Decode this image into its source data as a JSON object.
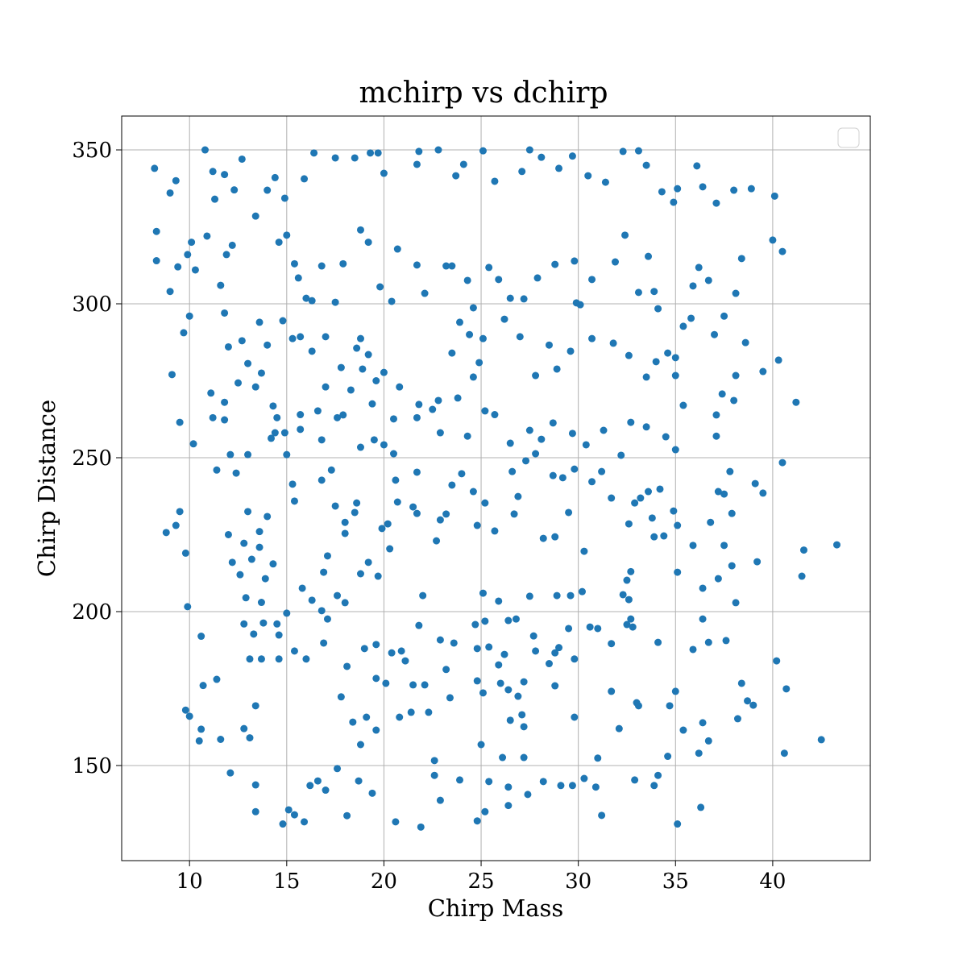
{
  "chart_data": {
    "type": "scatter",
    "title": "mchirp vs dchirp",
    "x_label": "Chirp Mass",
    "y_label": "Chirp Distance",
    "color": "#1f77b4",
    "grid": true,
    "xlim": [
      6.51,
      45.02
    ],
    "ylim": [
      119.1,
      361.0
    ],
    "xticks": [
      10,
      15,
      20,
      25,
      30,
      35,
      40
    ],
    "yticks": [
      150,
      200,
      250,
      300,
      350
    ],
    "x": [
      8.2,
      8.3,
      8.3,
      9.0,
      9.3,
      9.0,
      9.1,
      9.4,
      9.7,
      9.5,
      10.0,
      9.9,
      10.1,
      10.8,
      11.2,
      11.3,
      10.3,
      10.9,
      11.8,
      12.7,
      12.3,
      12.2,
      11.9,
      11.6,
      11.8,
      12.0,
      11.1,
      11.2,
      10.2,
      11.4,
      12.1,
      12.4,
      13.0,
      12.0,
      12.2,
      8.8,
      9.3,
      9.5,
      9.8,
      9.9,
      10.6,
      10.7,
      11.4,
      9.8,
      10.0,
      10.6,
      10.5,
      11.6,
      12.1,
      12.8,
      13.1,
      13.4,
      13.4,
      14.8,
      15.1,
      15.4,
      15.9,
      16.2,
      16.6,
      17.0,
      17.6,
      18.1,
      18.7,
      19.4,
      20.6,
      21.9,
      22.9,
      23.9,
      24.8,
      25.2,
      25.4,
      26.1,
      26.4,
      26.4,
      27.2,
      27.4,
      28.2,
      29.1,
      29.7,
      30.3,
      30.9,
      31.2,
      31.0,
      32.1,
      32.9,
      33.9,
      34.1,
      34.6,
      35.1,
      35.4,
      36.2,
      36.3,
      36.7,
      40.6,
      42.5,
      43.3,
      41.6,
      41.5,
      40.7,
      40.2,
      40.5,
      41.2,
      40.3,
      40.5,
      40.1,
      40.0,
      38.9,
      38.0,
      38.4,
      38.1,
      39.5,
      38.6,
      38.1,
      37.5,
      37.0,
      36.7,
      35.9,
      36.2,
      36.4,
      36.1,
      37.1,
      35.1,
      34.9,
      34.3,
      33.5,
      33.1,
      32.3,
      31.4,
      30.5,
      29.7,
      29.0,
      28.1,
      27.5,
      27.1,
      25.7,
      25.1,
      24.1,
      23.7,
      22.8,
      21.8,
      21.7,
      20.0,
      19.7,
      19.3,
      18.5,
      17.5,
      16.4,
      15.9,
      14.4,
      14.9,
      14.0,
      13.4,
      15.0,
      14.6,
      15.4,
      16.0,
      15.6,
      16.3,
      16.8,
      17.5,
      17.9,
      18.8,
      19.2,
      19.8,
      20.4,
      20.7,
      21.7,
      22.1,
      23.2,
      23.5,
      24.3,
      24.6,
      25.4,
      25.9,
      26.5,
      27.2,
      27.9,
      28.8,
      29.8,
      29.9,
      30.1,
      30.7,
      31.9,
      32.4,
      33.6,
      33.1,
      33.9,
      34.1,
      35.4,
      35.8,
      35.0,
      35.0,
      35.4,
      34.6,
      34.0,
      33.5,
      32.6,
      31.8,
      30.7,
      29.6,
      28.9,
      28.5,
      27.8,
      27.0,
      26.2,
      25.1,
      24.9,
      24.6,
      24.4,
      23.9,
      23.5,
      23.8,
      22.8,
      21.8,
      20.8,
      20.0,
      19.6,
      19.2,
      18.8,
      17.8,
      17.0,
      16.3,
      15.7,
      15.3,
      14.8,
      14.0,
      13.6,
      13.0,
      12.5,
      13.4,
      14.5,
      15.7,
      17.0,
      17.9,
      18.3,
      19.4,
      20.5,
      21.7,
      22.5,
      22.9,
      24.3,
      25.2,
      25.7,
      26.5,
      27.5,
      28.1,
      28.7,
      29.7,
      30.4,
      31.3,
      32.2,
      32.7,
      33.5,
      34.5,
      35.0,
      37.1,
      37.1,
      37.4,
      38.0,
      37.8,
      39.1,
      39.5,
      37.5,
      37.2,
      37.9,
      37.5,
      36.8,
      35.9,
      35.1,
      34.9,
      34.4,
      33.9,
      33.8,
      32.9,
      33.2,
      33.6,
      34.2,
      32.6,
      32.5,
      32.6,
      32.3,
      32.7,
      35.1,
      36.4,
      36.4,
      35.9,
      36.7,
      37.6,
      38.1,
      39.2,
      37.9,
      37.2,
      38.4,
      39.0,
      38.7,
      38.2,
      36.4,
      35.0,
      34.7,
      34.1,
      32.5,
      32.8,
      32.7,
      33.0,
      33.1,
      31.0,
      30.6,
      30.2,
      30.3,
      29.6,
      28.9,
      28.2,
      28.8,
      29.5,
      29.2,
      29.8,
      30.7,
      31.7,
      31.2,
      28.7,
      27.8,
      27.3,
      26.6,
      26.9,
      26.7,
      25.7,
      24.8,
      25.2,
      24.6,
      24.0,
      23.5,
      23.2,
      22.9,
      22.7,
      21.7,
      21.5,
      21.7,
      20.6,
      20.7,
      20.2,
      20.3,
      19.9,
      19.7,
      19.2,
      18.8,
      18.5,
      18.6,
      18.0,
      18.0,
      17.5,
      17.1,
      16.9,
      17.3,
      16.8,
      15.4,
      15.3,
      14.0,
      13.6,
      13.6,
      13.0,
      13.2,
      13.9,
      14.3,
      12.8,
      12.6,
      12.9,
      13.7,
      13.8,
      12.8,
      13.3,
      13.4,
      13.1,
      13.7,
      14.5,
      14.6,
      14.6,
      15.0,
      15.4,
      16.0,
      15.8,
      16.3,
      16.8,
      16.9,
      17.1,
      17.6,
      18.0,
      18.1,
      17.8,
      18.4,
      18.8,
      19.1,
      19.0,
      19.6,
      20.1,
      19.6,
      19.6,
      20.4,
      20.9,
      21.1,
      20.8,
      21.4,
      21.5,
      21.8,
      22.0,
      22.1,
      22.3,
      22.6,
      22.6,
      23.2,
      23.6,
      23.4,
      22.9,
      24.7,
      25.1,
      25.2,
      24.8,
      24.8,
      25.1,
      25.0,
      25.4,
      25.9,
      26.4,
      26.8,
      27.5,
      27.7,
      27.8,
      27.2,
      26.9,
      27.1,
      27.2,
      26.5,
      26.4,
      26.0,
      26.2,
      25.9,
      28.8,
      29.0,
      28.8,
      29.5,
      29.8,
      29.8,
      28.5,
      31.7,
      31.7,
      18.9,
      18.6,
      16.8,
      17.6,
      19.5,
      18.8,
      20.0,
      20.5,
      16.6,
      15.0,
      15.7,
      14.9,
      14.4,
      14.2,
      12.7,
      13.7,
      11.8,
      11.8,
      14.3
    ],
    "y": [
      344,
      323.5,
      314,
      336,
      340,
      304,
      277,
      312,
      290.6,
      261.5,
      296,
      316,
      320,
      350,
      343,
      334,
      311,
      322,
      342,
      347,
      337,
      319,
      316,
      306,
      297,
      286,
      271,
      263,
      254.5,
      246,
      251,
      245,
      251,
      225,
      216,
      225.7,
      228,
      232.5,
      219,
      201.6,
      192,
      176,
      178,
      168,
      166,
      161.8,
      158,
      158.5,
      147.6,
      162,
      159,
      143.7,
      135,
      131,
      135.6,
      134,
      131.7,
      143.5,
      145,
      142,
      149,
      133.7,
      145,
      141,
      131.7,
      130,
      138.7,
      145.3,
      132,
      135,
      144.8,
      152.6,
      143,
      137,
      152.6,
      140.6,
      144.8,
      143.5,
      143.5,
      145.8,
      143,
      133.8,
      152.4,
      162,
      145.3,
      143.5,
      146.8,
      153,
      131,
      161.5,
      154,
      136.4,
      158,
      154,
      158.4,
      221.7,
      220,
      211.5,
      174.9,
      184,
      248.4,
      268,
      281.7,
      317,
      335,
      320.7,
      337.4,
      336.9,
      314.7,
      303.4,
      278,
      287.4,
      276.7,
      296,
      290,
      307.6,
      305.8,
      311.8,
      338,
      344.8,
      332.7,
      337.4,
      333,
      336.4,
      345,
      349.7,
      349.5,
      339.5,
      341.6,
      348,
      344,
      347.6,
      350,
      343,
      339.8,
      349.7,
      345.3,
      341.6,
      350,
      349.5,
      345.3,
      342.4,
      349,
      349,
      347.4,
      347.4,
      349,
      340.6,
      341,
      334.3,
      336.9,
      328.5,
      322.3,
      320,
      313,
      301.8,
      308.4,
      301,
      312.3,
      300.5,
      313,
      324,
      320,
      305.5,
      300.8,
      317.8,
      312.6,
      303.4,
      312.3,
      312.3,
      307.6,
      298.7,
      311.8,
      307.9,
      301.8,
      301.6,
      308.4,
      312.8,
      313.9,
      300.3,
      299.7,
      307.9,
      313.6,
      322.3,
      315.4,
      303.7,
      304,
      298.4,
      292.7,
      295.3,
      282.5,
      276.7,
      267,
      284,
      281.2,
      276.2,
      283.2,
      287.2,
      288.7,
      284.6,
      278.8,
      286.6,
      276.7,
      289.3,
      295,
      288.7,
      280.9,
      276.2,
      290,
      294,
      284,
      269.4,
      268.6,
      267.3,
      273,
      277.7,
      275,
      283.5,
      288.7,
      279.3,
      289.3,
      284.6,
      289.3,
      288.7,
      294.5,
      286.6,
      294,
      280.6,
      274.3,
      273,
      263,
      264,
      273,
      263.9,
      272,
      267.5,
      262.6,
      263,
      265.7,
      258.1,
      257,
      265.2,
      264,
      254.7,
      258.9,
      256,
      261.3,
      257.9,
      254.2,
      258.9,
      250.8,
      261.5,
      260,
      256.8,
      252.6,
      257,
      263.9,
      270.7,
      268.6,
      245.5,
      241.6,
      238.5,
      238.2,
      239,
      231.9,
      221.5,
      229,
      221.5,
      228,
      232.7,
      224.6,
      224.3,
      230.4,
      235.3,
      236.9,
      239,
      239.8,
      228.5,
      210.2,
      203.9,
      205.5,
      213,
      212.8,
      207.6,
      197.6,
      187.7,
      190,
      190.6,
      202.9,
      216.2,
      214.9,
      210.7,
      176.7,
      169.6,
      171,
      165.2,
      163.9,
      174.1,
      169.4,
      190,
      195.8,
      195,
      197.6,
      170.4,
      169.4,
      194.5,
      195,
      206.5,
      219.6,
      205.2,
      205.2,
      223.8,
      224.3,
      232.2,
      243.5,
      246.3,
      242.2,
      236.9,
      245.5,
      244.2,
      251.3,
      249,
      245.5,
      237.4,
      231.7,
      226.2,
      228,
      235.3,
      239,
      244.8,
      241.1,
      231.7,
      229.8,
      223,
      231.9,
      234,
      245.3,
      242.7,
      235.6,
      228.5,
      220.4,
      227,
      211.5,
      216,
      212.3,
      232.2,
      235.3,
      229,
      225.4,
      234.3,
      218.1,
      212.8,
      246,
      242.7,
      235.9,
      241.4,
      230.9,
      226,
      220.9,
      232.5,
      217,
      210.7,
      215.5,
      222.2,
      212,
      204.5,
      203,
      196.3,
      196,
      192.7,
      169.4,
      184.6,
      184.6,
      196,
      192.4,
      184.6,
      199.5,
      187.2,
      184.6,
      207.6,
      203.7,
      200.3,
      189.8,
      197.6,
      205.2,
      202.9,
      182.2,
      172.3,
      164.1,
      156.8,
      165.7,
      188,
      189.3,
      176.7,
      178.3,
      161.5,
      186.6,
      187.2,
      184,
      165.7,
      167.3,
      176.2,
      195.5,
      205.2,
      176.2,
      167.3,
      146.8,
      151.6,
      181.2,
      189.8,
      172,
      190.8,
      195.8,
      206,
      196.9,
      188,
      177.5,
      173.6,
      156.8,
      188.5,
      203.4,
      197.1,
      197.6,
      205,
      192.1,
      187.2,
      177.2,
      172.5,
      166.5,
      162.6,
      164.7,
      174.6,
      176.7,
      186.1,
      182.7,
      175.9,
      188.3,
      186.6,
      194.5,
      184.6,
      165.7,
      183.1,
      189.6,
      174.1,
      278.8,
      285.6,
      255.8,
      263,
      255.8,
      253.4,
      254.2,
      251.3,
      265.2,
      251,
      259.2,
      258.1,
      258.1,
      256.3,
      288,
      277.5,
      262.3,
      268,
      266.8
    ]
  }
}
